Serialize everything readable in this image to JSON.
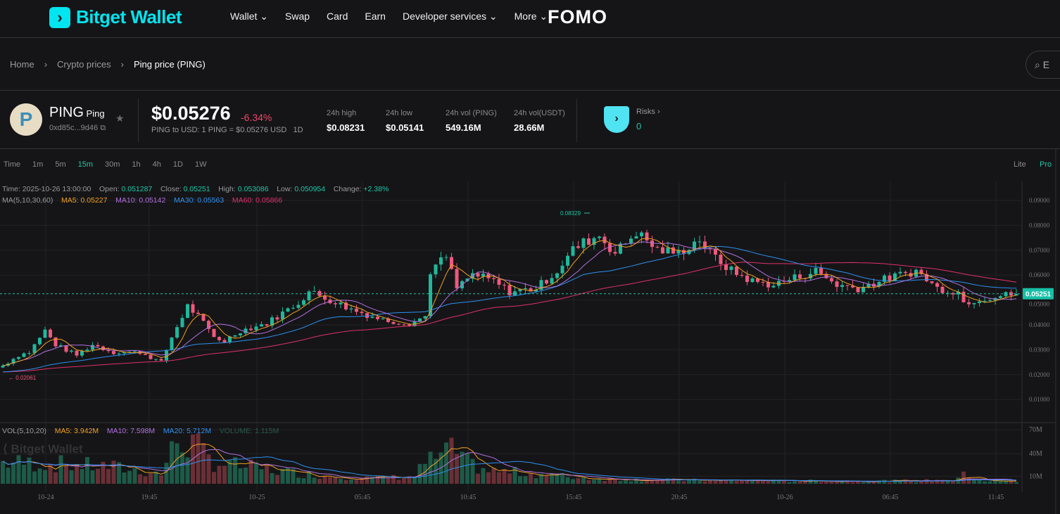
{
  "nav": {
    "brand": "Bitget Wallet",
    "items": [
      "Wallet ⌄",
      "Swap",
      "Card",
      "Earn",
      "Developer services ⌄",
      "More ⌄"
    ],
    "fomo": "FOMO"
  },
  "breadcrumb": {
    "items": [
      "Home",
      "Crypto prices",
      "Ping price (PING)"
    ],
    "sep": "›"
  },
  "search": {
    "placeholder": "E"
  },
  "token": {
    "symbol": "PING",
    "name": "Ping",
    "address": "0xd85c...9d46",
    "price": "$0.05276",
    "change": "-6.34%",
    "conversion": "PING to USD: 1 PING = $0.05276 USD",
    "period": "1D",
    "stats": [
      {
        "label": "24h high",
        "value": "$0.08231"
      },
      {
        "label": "24h low",
        "value": "$0.05141"
      },
      {
        "label": "24h vol (PING)",
        "value": "549.16M"
      },
      {
        "label": "24h vol(USDT)",
        "value": "28.66M"
      }
    ],
    "risks_label": "Risks ›",
    "risks_value": "0"
  },
  "timeframes": {
    "items": [
      "Time",
      "1m",
      "5m",
      "15m",
      "30m",
      "1h",
      "4h",
      "1D",
      "1W"
    ],
    "active": "15m"
  },
  "modes": {
    "lite": "Lite",
    "pro": "Pro"
  },
  "ohlc": {
    "time_label": "Time:",
    "time": "2025-10-26 13:00:00",
    "open_label": "Open:",
    "open": "0.051287",
    "close_label": "Close:",
    "close": "0.05251",
    "high_label": "High:",
    "high": "0.053086",
    "low_label": "Low:",
    "low": "0.050954",
    "change_label": "Change:",
    "change": "+2.38%"
  },
  "ma": {
    "label": "MA(5,10,30,60)",
    "ma5": "MA5: 0.05227",
    "ma10": "MA10: 0.05142",
    "ma30": "MA30: 0.05563",
    "ma60": "MA60: 0.05866"
  },
  "vol": {
    "label": "VOL(5,10,20)",
    "ma5": "MA5: 3.942M",
    "ma10": "MA10: 7.598M",
    "ma20": "MA20: 5.712M",
    "volume": "VOLUME: 1.115M"
  },
  "watermark": "Bitget Wallet",
  "colors": {
    "up": "#1fb89c",
    "down": "#f0587c",
    "accent": "#1fc7a8",
    "ma5": "#f0a020",
    "ma10": "#b070e0",
    "ma30": "#2e90f0",
    "ma60": "#e0306a"
  },
  "chart_data": {
    "type": "candlestick",
    "interval": "15m",
    "candle_count": 193,
    "price_axis": {
      "ticks": [
        "0.09000",
        "0.08000",
        "0.07000",
        "0.06000",
        "0.05000",
        "0.04000",
        "0.03000",
        "0.02000",
        "0.01000"
      ],
      "range": [
        0.0,
        0.095
      ]
    },
    "volume_axis": {
      "ticks": [
        "70M",
        "40M",
        "10M"
      ]
    },
    "x_ticks": [
      "10-24",
      "19:45",
      "10-25",
      "05:45",
      "10:45",
      "15:45",
      "20:45",
      "10-26",
      "06:45",
      "11:45"
    ],
    "last_price": "0.05251",
    "max_label": "0.08329",
    "min_label": "0.02061",
    "close_path": [
      [
        0,
        0.0236
      ],
      [
        3,
        0.0278
      ],
      [
        5,
        0.029
      ],
      [
        8,
        0.0377
      ],
      [
        10,
        0.032
      ],
      [
        14,
        0.0278
      ],
      [
        17,
        0.032
      ],
      [
        21,
        0.029
      ],
      [
        26,
        0.029
      ],
      [
        30,
        0.025
      ],
      [
        32,
        0.035
      ],
      [
        35,
        0.0476
      ],
      [
        37,
        0.0434
      ],
      [
        40,
        0.035
      ],
      [
        42,
        0.0335
      ],
      [
        45,
        0.0377
      ],
      [
        50,
        0.0406
      ],
      [
        56,
        0.049
      ],
      [
        58,
        0.0533
      ],
      [
        62,
        0.05
      ],
      [
        66,
        0.0462
      ],
      [
        72,
        0.042
      ],
      [
        77,
        0.0406
      ],
      [
        80,
        0.0434
      ],
      [
        81,
        0.0617
      ],
      [
        84,
        0.0674
      ],
      [
        86,
        0.0547
      ],
      [
        89,
        0.0603
      ],
      [
        93,
        0.0575
      ],
      [
        96,
        0.0533
      ],
      [
        101,
        0.0547
      ],
      [
        105,
        0.0617
      ],
      [
        108,
        0.0702
      ],
      [
        110,
        0.073
      ],
      [
        113,
        0.0759
      ],
      [
        116,
        0.0688
      ],
      [
        120,
        0.0773
      ],
      [
        124,
        0.0702
      ],
      [
        128,
        0.0688
      ],
      [
        132,
        0.0745
      ],
      [
        134,
        0.0688
      ],
      [
        138,
        0.0617
      ],
      [
        142,
        0.0575
      ],
      [
        146,
        0.0561
      ],
      [
        150,
        0.0589
      ],
      [
        154,
        0.0617
      ],
      [
        158,
        0.0561
      ],
      [
        162,
        0.0547
      ],
      [
        168,
        0.0589
      ],
      [
        173,
        0.0617
      ],
      [
        177,
        0.0547
      ],
      [
        181,
        0.0533
      ],
      [
        182,
        0.049
      ],
      [
        185,
        0.0505
      ],
      [
        192,
        0.0525
      ]
    ],
    "volume_path_M": [
      [
        0,
        30
      ],
      [
        10,
        28
      ],
      [
        20,
        24
      ],
      [
        30,
        14
      ],
      [
        32,
        45
      ],
      [
        33,
        60
      ],
      [
        36,
        55
      ],
      [
        40,
        30
      ],
      [
        50,
        20
      ],
      [
        60,
        12
      ],
      [
        70,
        8
      ],
      [
        78,
        10
      ],
      [
        80,
        30
      ],
      [
        84,
        40
      ],
      [
        85,
        70
      ],
      [
        86,
        35
      ],
      [
        92,
        18
      ],
      [
        100,
        15
      ],
      [
        110,
        8
      ],
      [
        120,
        6
      ],
      [
        130,
        5
      ],
      [
        150,
        4
      ],
      [
        170,
        4
      ],
      [
        180,
        5
      ],
      [
        182,
        12
      ],
      [
        186,
        4
      ],
      [
        192,
        3
      ]
    ]
  }
}
